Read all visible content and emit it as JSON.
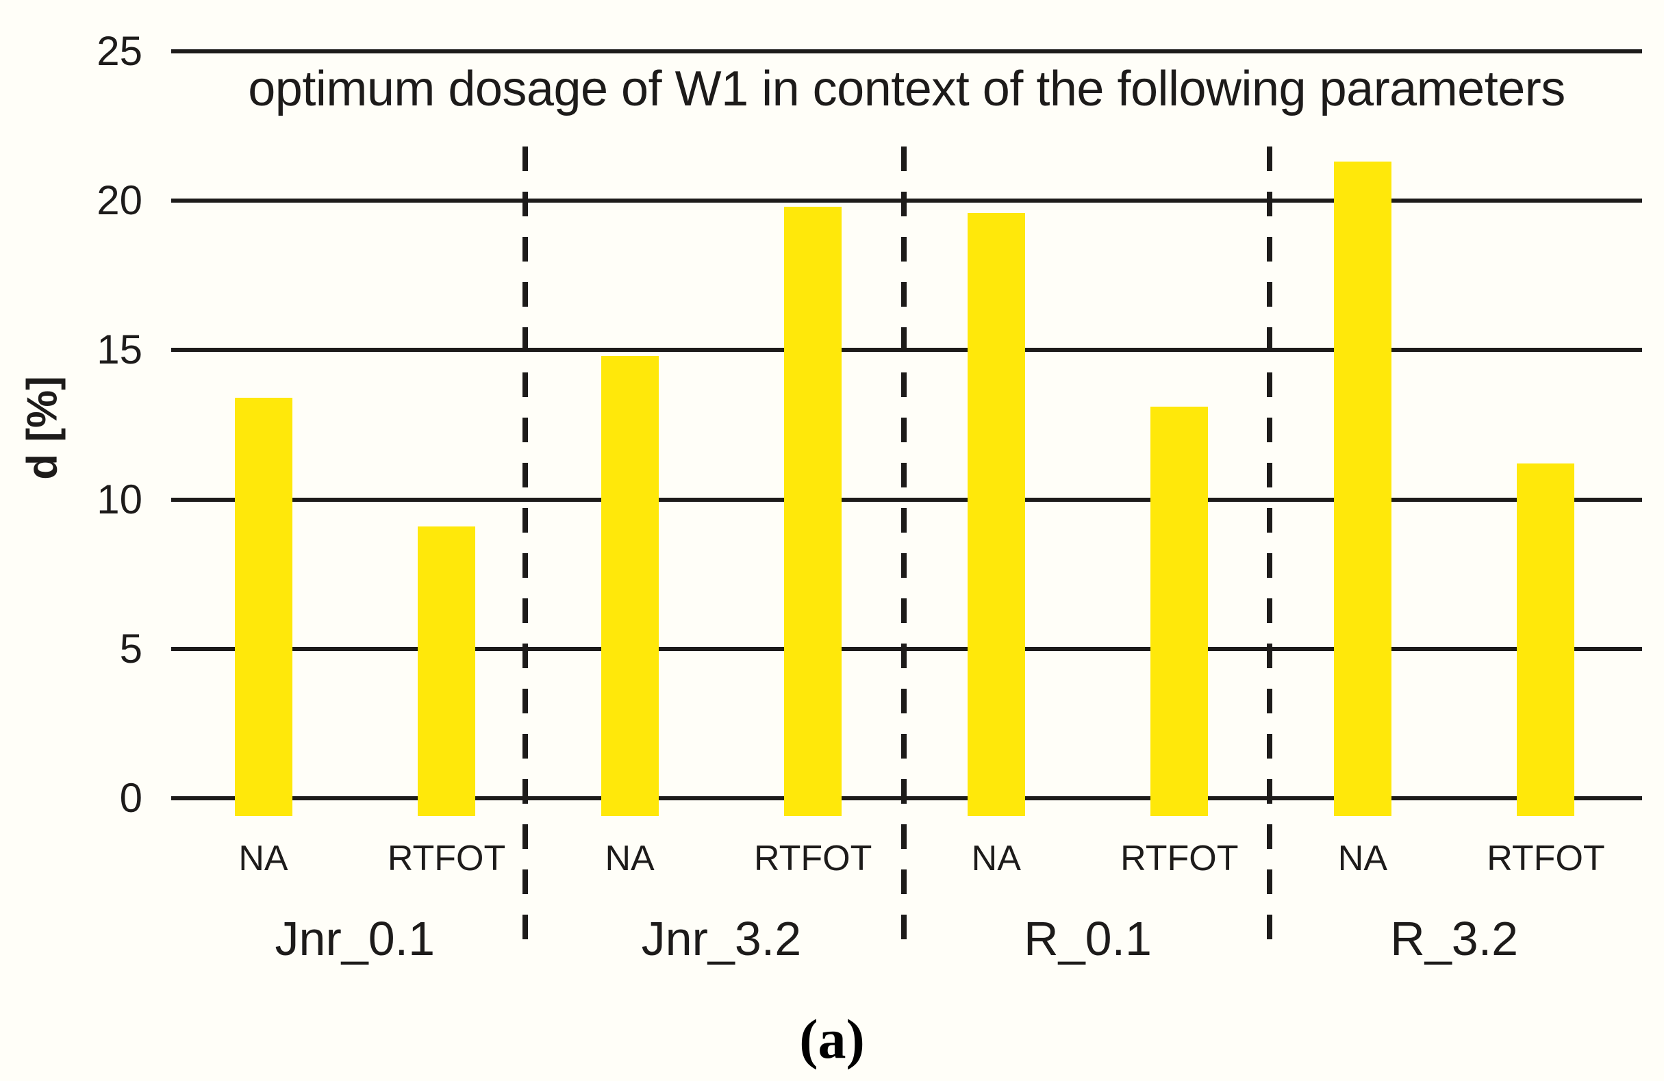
{
  "chart_data": {
    "type": "bar",
    "title": "optimum dosage of W1 in context of the following parameters",
    "ylabel": "d [%]",
    "xlabel": "",
    "ylim": [
      0,
      25
    ],
    "yticks": [
      0,
      5,
      10,
      15,
      20,
      25
    ],
    "grid": "horizontal",
    "legend_position": "none",
    "bar_color": "#ffe80a",
    "line_color": "#1d1b1a",
    "background_color": "#fffef8",
    "caption": "(a)",
    "condition_labels": [
      "NA",
      "RTFOT"
    ],
    "groups": [
      {
        "label": "Jnr_0.1",
        "bars": [
          {
            "label": "NA",
            "value": 13.4
          },
          {
            "label": "RTFOT",
            "value": 9.1
          }
        ]
      },
      {
        "label": "Jnr_3.2",
        "bars": [
          {
            "label": "NA",
            "value": 14.8
          },
          {
            "label": "RTFOT",
            "value": 19.8
          }
        ]
      },
      {
        "label": "R_0.1",
        "bars": [
          {
            "label": "NA",
            "value": 19.6
          },
          {
            "label": "RTFOT",
            "value": 13.1
          }
        ]
      },
      {
        "label": "R_3.2",
        "bars": [
          {
            "label": "NA",
            "value": 21.3
          },
          {
            "label": "RTFOT",
            "value": 11.2
          }
        ]
      }
    ]
  }
}
